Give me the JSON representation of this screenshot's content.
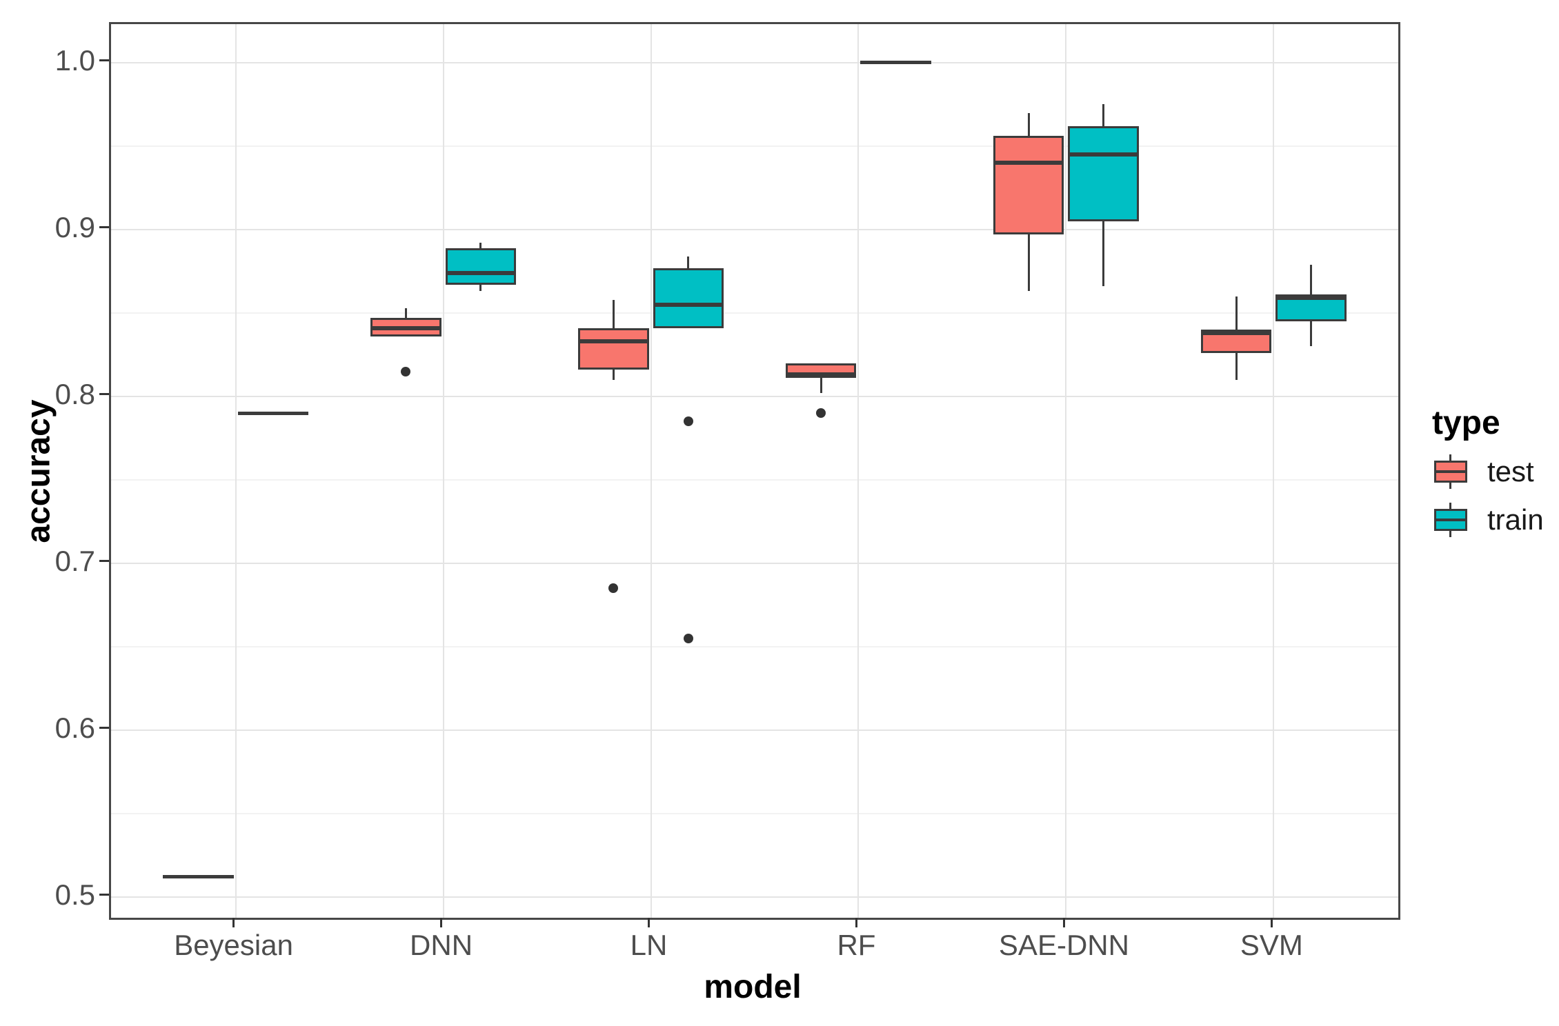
{
  "chart_data": {
    "type": "boxplot",
    "title": "",
    "xlabel": "model",
    "ylabel": "accuracy",
    "categories": [
      "Beyesian",
      "DNN",
      "LN",
      "RF",
      "SAE-DNN",
      "SVM"
    ],
    "xlim": [
      0.4,
      6.6
    ],
    "ylim": [
      0.4876,
      1.0231
    ],
    "grid": "on",
    "yticks": [
      {
        "label": "0.5",
        "value": 0.5
      },
      {
        "label": "0.6",
        "value": 0.6
      },
      {
        "label": "0.7",
        "value": 0.7
      },
      {
        "label": "0.8",
        "value": 0.8
      },
      {
        "label": "0.9",
        "value": 0.9
      },
      {
        "label": "1.0",
        "value": 1.0
      }
    ],
    "yticks_minor": [
      0.55,
      0.65,
      0.75,
      0.85,
      0.95
    ],
    "legend": {
      "title": "type",
      "position": "right",
      "entries": [
        {
          "label": "test",
          "color": "#F8766D"
        },
        {
          "label": "train",
          "color": "#00BFC4"
        }
      ]
    },
    "series": [
      {
        "name": "test",
        "color": "#F8766D",
        "boxes": [
          {
            "category": "Beyesian",
            "kind": "line",
            "median": 0.512
          },
          {
            "category": "DNN",
            "kind": "box",
            "q1": 0.836,
            "median": 0.841,
            "q3": 0.847,
            "whisker_low": null,
            "whisker_high": 0.853,
            "outliers": [
              0.815
            ]
          },
          {
            "category": "LN",
            "kind": "box",
            "q1": 0.816,
            "median": 0.833,
            "q3": 0.841,
            "whisker_low": 0.81,
            "whisker_high": 0.858,
            "outliers": [
              0.685
            ]
          },
          {
            "category": "RF",
            "kind": "box",
            "q1": 0.811,
            "median": 0.813,
            "q3": 0.82,
            "whisker_low": 0.802,
            "whisker_high": null,
            "outliers": [
              0.79
            ]
          },
          {
            "category": "SAE-DNN",
            "kind": "box",
            "q1": 0.897,
            "median": 0.94,
            "q3": 0.956,
            "whisker_low": 0.863,
            "whisker_high": 0.97,
            "outliers": []
          },
          {
            "category": "SVM",
            "kind": "box",
            "q1": 0.826,
            "median": 0.838,
            "q3": 0.84,
            "whisker_low": 0.81,
            "whisker_high": 0.86,
            "outliers": []
          }
        ]
      },
      {
        "name": "train",
        "color": "#00BFC4",
        "boxes": [
          {
            "category": "Beyesian",
            "kind": "line",
            "median": 0.79
          },
          {
            "category": "DNN",
            "kind": "box",
            "q1": 0.867,
            "median": 0.874,
            "q3": 0.889,
            "whisker_low": 0.863,
            "whisker_high": 0.892,
            "outliers": []
          },
          {
            "category": "LN",
            "kind": "box",
            "q1": 0.841,
            "median": 0.855,
            "q3": 0.877,
            "whisker_low": null,
            "whisker_high": 0.884,
            "outliers": [
              0.785,
              0.655
            ]
          },
          {
            "category": "RF",
            "kind": "line",
            "median": 1.0
          },
          {
            "category": "SAE-DNN",
            "kind": "box",
            "q1": 0.905,
            "median": 0.945,
            "q3": 0.962,
            "whisker_low": 0.866,
            "whisker_high": 0.975,
            "outliers": []
          },
          {
            "category": "SVM",
            "kind": "box",
            "q1": 0.845,
            "median": 0.859,
            "q3": 0.861,
            "whisker_low": 0.83,
            "whisker_high": 0.879,
            "outliers": []
          }
        ]
      }
    ]
  }
}
